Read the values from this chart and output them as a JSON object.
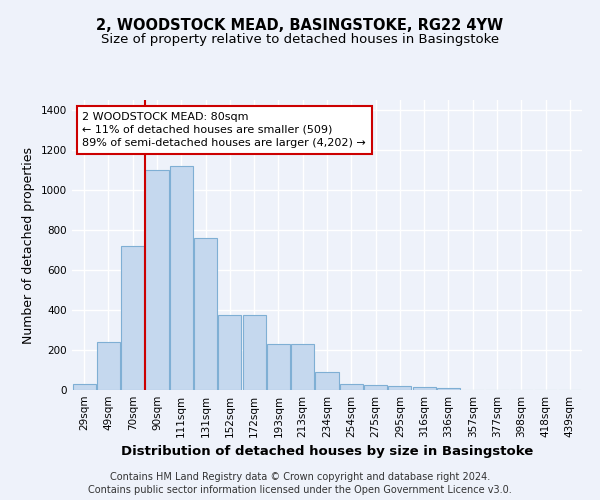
{
  "title": "2, WOODSTOCK MEAD, BASINGSTOKE, RG22 4YW",
  "subtitle": "Size of property relative to detached houses in Basingstoke",
  "xlabel": "Distribution of detached houses by size in Basingstoke",
  "ylabel": "Number of detached properties",
  "footer_line1": "Contains HM Land Registry data © Crown copyright and database right 2024.",
  "footer_line2": "Contains public sector information licensed under the Open Government Licence v3.0.",
  "bin_labels": [
    "29sqm",
    "49sqm",
    "70sqm",
    "90sqm",
    "111sqm",
    "131sqm",
    "152sqm",
    "172sqm",
    "193sqm",
    "213sqm",
    "234sqm",
    "254sqm",
    "275sqm",
    "295sqm",
    "316sqm",
    "336sqm",
    "357sqm",
    "377sqm",
    "398sqm",
    "418sqm",
    "439sqm"
  ],
  "bar_values": [
    30,
    240,
    720,
    1100,
    1120,
    760,
    375,
    375,
    230,
    230,
    90,
    30,
    25,
    20,
    15,
    10,
    0,
    0,
    0,
    0,
    0
  ],
  "bar_color": "#c5d8ee",
  "bar_edge_color": "#7fafd4",
  "annotation_line1": "2 WOODSTOCK MEAD: 80sqm",
  "annotation_line2": "← 11% of detached houses are smaller (509)",
  "annotation_line3": "89% of semi-detached houses are larger (4,202) →",
  "annotation_box_facecolor": "#ffffff",
  "annotation_box_edgecolor": "#cc0000",
  "vline_color": "#cc0000",
  "vline_x": 2.5,
  "ylim": [
    0,
    1450
  ],
  "yticks": [
    0,
    200,
    400,
    600,
    800,
    1000,
    1200,
    1400
  ],
  "background_color": "#eef2fa",
  "plot_bg_color": "#eef2fa",
  "grid_color": "#ffffff",
  "title_fontsize": 10.5,
  "subtitle_fontsize": 9.5,
  "ylabel_fontsize": 9,
  "xlabel_fontsize": 9.5,
  "tick_fontsize": 7.5,
  "annotation_fontsize": 8,
  "footer_fontsize": 7
}
